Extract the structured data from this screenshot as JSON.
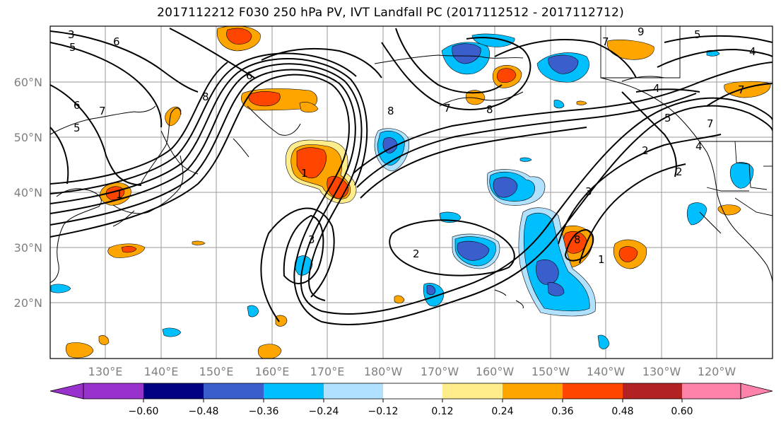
{
  "title": "2017112212 F030 250 hPa PV, IVT Landfall PC (2017112512 - 2017112712)",
  "map": {
    "lat_labels": [
      "60°N",
      "50°N",
      "40°N",
      "30°N",
      "20°N"
    ],
    "lon_labels": [
      "130°E",
      "140°E",
      "150°E",
      "160°E",
      "170°E",
      "180°W",
      "170°W",
      "160°W",
      "150°W",
      "140°W",
      "130°W",
      "120°W"
    ],
    "pv_contour_labels": [
      "3",
      "5",
      "6",
      "7",
      "6",
      "5",
      "6",
      "8",
      "9",
      "7",
      "5",
      "4",
      "4",
      "7",
      "8",
      "8",
      "7",
      "7",
      "5",
      "4",
      "3",
      "2",
      "2",
      "1",
      "3",
      "2",
      "1",
      "1",
      "8"
    ]
  },
  "colorbar": {
    "ticks": [
      "−0.60",
      "−0.48",
      "−0.36",
      "−0.24",
      "−0.12",
      "0.12",
      "0.24",
      "0.36",
      "0.48",
      "0.60"
    ],
    "colors": [
      "#9932CC",
      "#000080",
      "#3A5FCD",
      "#00BFFF",
      "#B0E2FF",
      "#FFFFFF",
      "#FFEC8B",
      "#FFA500",
      "#FF4500",
      "#B22222",
      "#FF82AB"
    ]
  }
}
